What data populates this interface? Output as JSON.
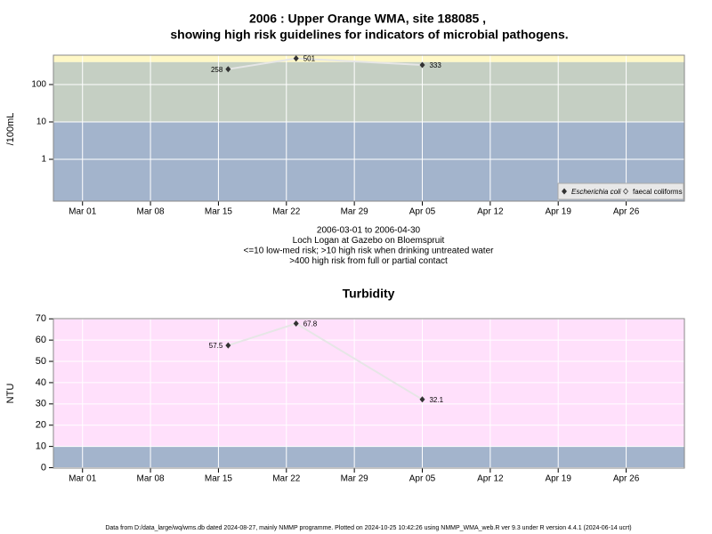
{
  "chart_data": [
    {
      "type": "line",
      "title": "2006 : Upper Orange WMA, site 188085 ,",
      "subtitle": "showing high risk guidelines for indicators of microbial pathogens.",
      "y_label": "/100mL",
      "log_y": true,
      "x": [
        "2006-03-16",
        "2006-03-23",
        "2006-04-05"
      ],
      "series": [
        {
          "name": "Escherichia coli",
          "color": "#333333",
          "values": [
            258,
            501,
            333
          ]
        },
        {
          "name": "faecal coliforms",
          "color": "#333333",
          "values": [
            null,
            null,
            null
          ]
        }
      ],
      "xlim": [
        "2006-02-26",
        "2006-05-02"
      ],
      "xticks": [
        {
          "value": "2006-03-01",
          "label": "Mar 01"
        },
        {
          "value": "2006-03-08",
          "label": "Mar 08"
        },
        {
          "value": "2006-03-15",
          "label": "Mar 15"
        },
        {
          "value": "2006-03-22",
          "label": "Mar 22"
        },
        {
          "value": "2006-03-29",
          "label": "Mar 29"
        },
        {
          "value": "2006-04-05",
          "label": "Apr 05"
        },
        {
          "value": "2006-04-12",
          "label": "Apr 12"
        },
        {
          "value": "2006-04-19",
          "label": "Apr 19"
        },
        {
          "value": "2006-04-26",
          "label": "Apr 26"
        }
      ],
      "ylim": [
        0.076,
        610
      ],
      "yticks": [
        1,
        10,
        100
      ],
      "thresholds": [
        10,
        400
      ],
      "band_colors": [
        "#a3b4cc",
        "#c5cfc3",
        "#fff8c6"
      ],
      "grid": true,
      "legend": "bottom-right",
      "caption": [
        "2006-03-01 to 2006-04-30",
        "Loch Logan at Gazebo on Bloemspruit",
        "<=10 low-med risk; >10 high risk when drinking untreated water",
        ">400 high risk from full or partial contact"
      ]
    },
    {
      "type": "line",
      "title": "Turbidity",
      "y_label": "NTU",
      "log_y": false,
      "x": [
        "2006-03-16",
        "2006-03-23",
        "2006-04-05"
      ],
      "series": [
        {
          "name": "Turbidity",
          "color": "#333333",
          "values": [
            57.5,
            67.8,
            32.1
          ]
        }
      ],
      "xlim": [
        "2006-02-26",
        "2006-05-02"
      ],
      "xticks": [
        {
          "value": "2006-03-01",
          "label": "Mar 01"
        },
        {
          "value": "2006-03-08",
          "label": "Mar 08"
        },
        {
          "value": "2006-03-15",
          "label": "Mar 15"
        },
        {
          "value": "2006-03-22",
          "label": "Mar 22"
        },
        {
          "value": "2006-03-29",
          "label": "Mar 29"
        },
        {
          "value": "2006-04-05",
          "label": "Apr 05"
        },
        {
          "value": "2006-04-12",
          "label": "Apr 12"
        },
        {
          "value": "2006-04-19",
          "label": "Apr 19"
        },
        {
          "value": "2006-04-26",
          "label": "Apr 26"
        }
      ],
      "ylim": [
        -0.2,
        70.1
      ],
      "yticks": [
        0,
        10,
        20,
        30,
        40,
        50,
        60,
        70
      ],
      "thresholds": [
        10
      ],
      "band_colors": [
        "#a3b4cc",
        "#ffe0fb"
      ],
      "grid": true
    }
  ],
  "footer": "Data from D:/data_large/wq/wms.db dated 2024-08-27, mainly NMMP programme. Plotted on 2024-10-25 10:42:26 using NMMP_WMA_web.R ver 9.3 under R version 4.4.1 (2024-06-14 ucrt)"
}
